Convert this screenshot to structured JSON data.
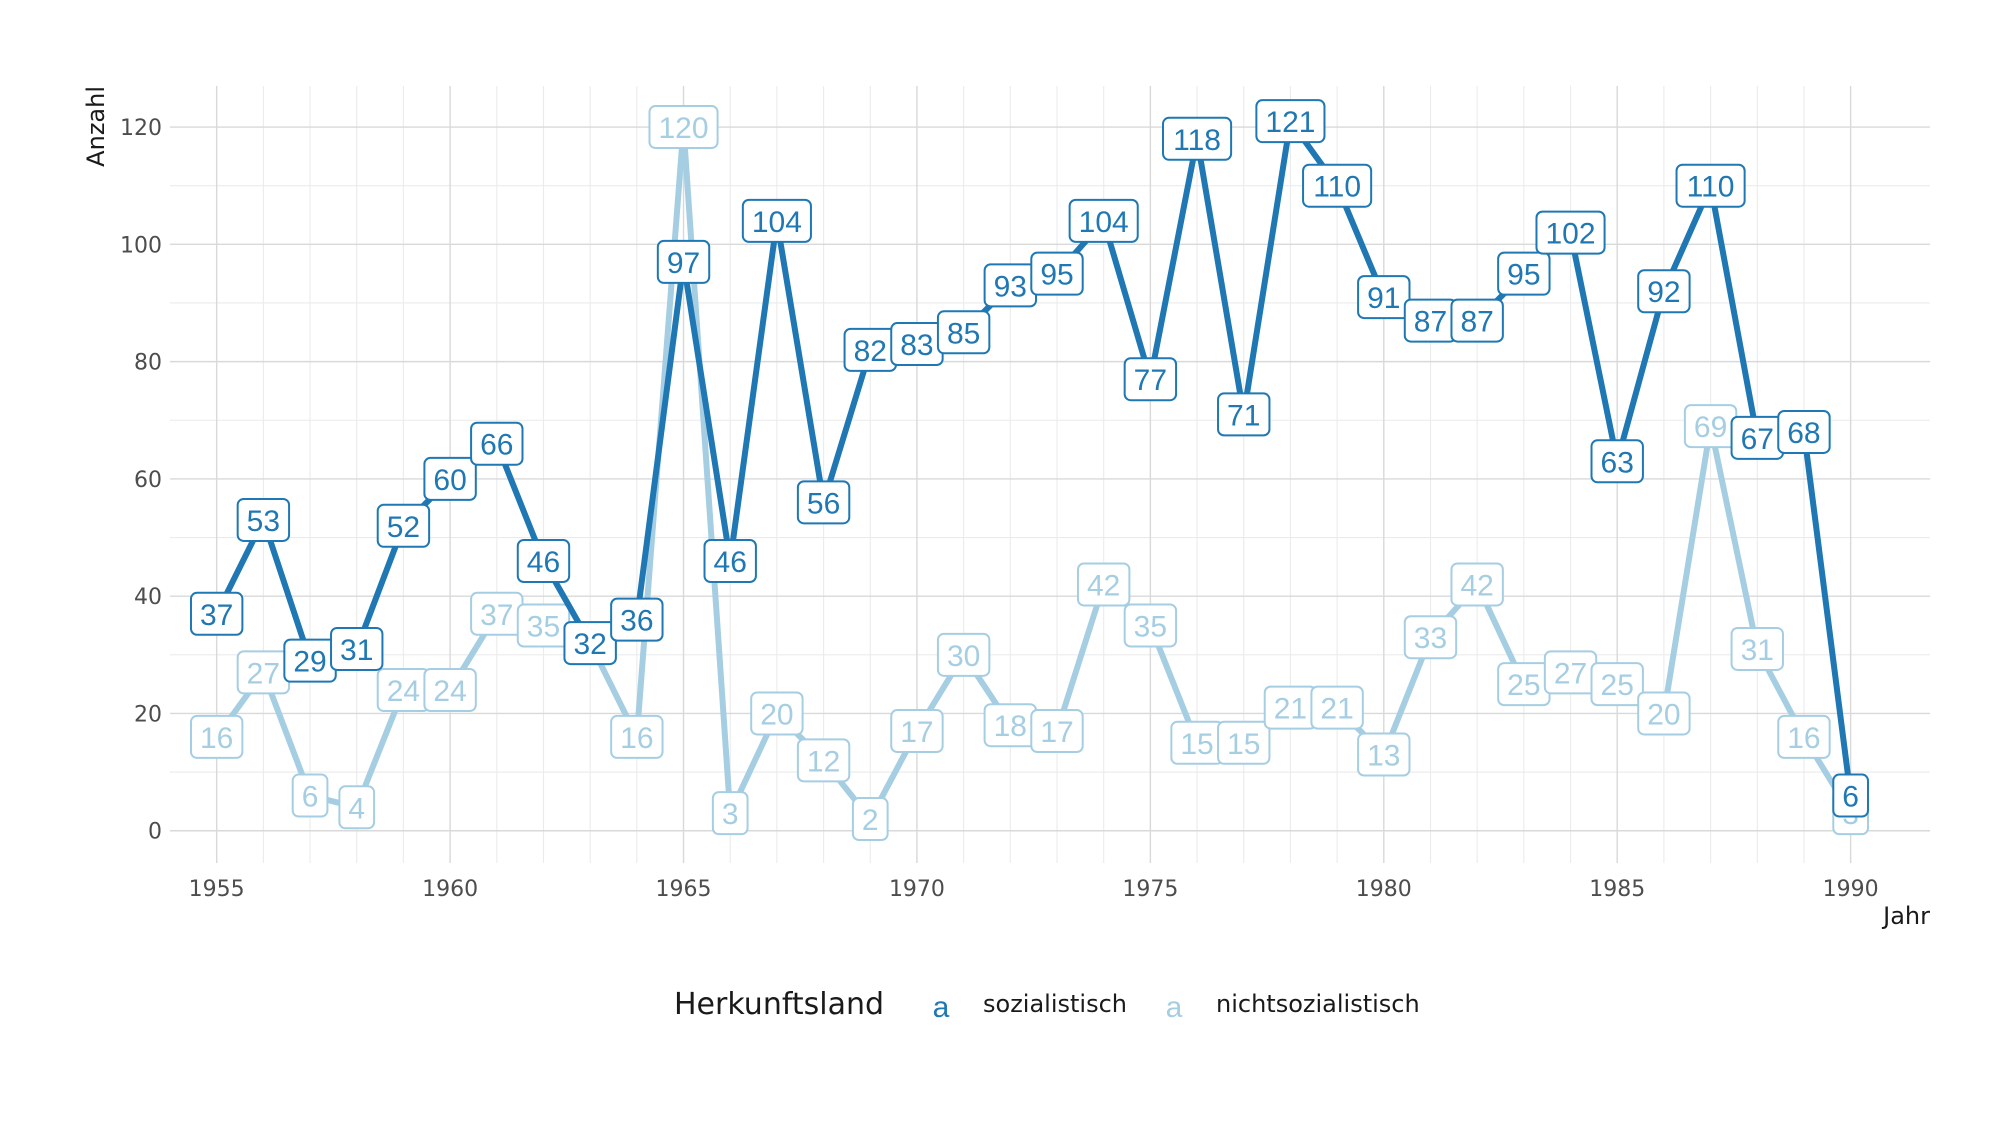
{
  "chart_data": {
    "type": "line",
    "xlabel": "Jahr",
    "ylabel": "Anzahl",
    "x": [
      1955,
      1956,
      1957,
      1958,
      1959,
      1960,
      1961,
      1962,
      1963,
      1964,
      1965,
      1966,
      1967,
      1968,
      1969,
      1970,
      1971,
      1972,
      1973,
      1974,
      1975,
      1976,
      1977,
      1978,
      1979,
      1980,
      1981,
      1982,
      1983,
      1984,
      1985,
      1986,
      1987,
      1988,
      1989,
      1990
    ],
    "xlim": [
      1954,
      1991.7
    ],
    "ylim": [
      -5.5,
      127
    ],
    "x_ticks": [
      1955,
      1960,
      1965,
      1970,
      1975,
      1980,
      1985,
      1990
    ],
    "y_ticks": [
      0,
      20,
      40,
      60,
      80,
      100,
      120
    ],
    "grid": true,
    "legend": {
      "title": "Herkunftsland",
      "position": "bottom",
      "key_glyph": "a"
    },
    "series": [
      {
        "name": "nichtsozialistisch",
        "color": "#a6cee3",
        "values": [
          16,
          27,
          6,
          4,
          24,
          24,
          37,
          35,
          32,
          16,
          120,
          3,
          20,
          12,
          2,
          17,
          30,
          18,
          17,
          42,
          35,
          15,
          15,
          21,
          21,
          13,
          33,
          42,
          25,
          27,
          25,
          20,
          69,
          31,
          16,
          3
        ]
      },
      {
        "name": "sozialistisch",
        "color": "#1f78b4",
        "values": [
          37,
          53,
          29,
          31,
          52,
          60,
          66,
          46,
          32,
          36,
          97,
          46,
          104,
          56,
          82,
          83,
          85,
          93,
          95,
          104,
          77,
          118,
          71,
          121,
          110,
          91,
          87,
          87,
          95,
          102,
          63,
          92,
          110,
          67,
          68,
          6
        ]
      }
    ]
  }
}
